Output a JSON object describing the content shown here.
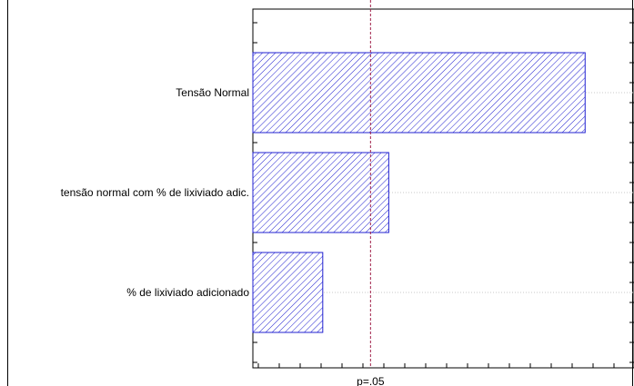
{
  "chart_data": {
    "type": "bar",
    "orientation": "horizontal",
    "categories": [
      "Tensão Normal",
      "tensão normal com % de lixiviado adic.",
      "% de lixiviado adicionado"
    ],
    "values": [
      12.03,
      4.92,
      2.53
    ],
    "xlim": [
      0,
      13.8
    ],
    "reference_line": {
      "value": 4.26,
      "label": "p=.05"
    },
    "grid": true,
    "bar_color": "#2020d0",
    "bar_fill": "diagonal-hatch",
    "reference_color": "#a0204a"
  }
}
